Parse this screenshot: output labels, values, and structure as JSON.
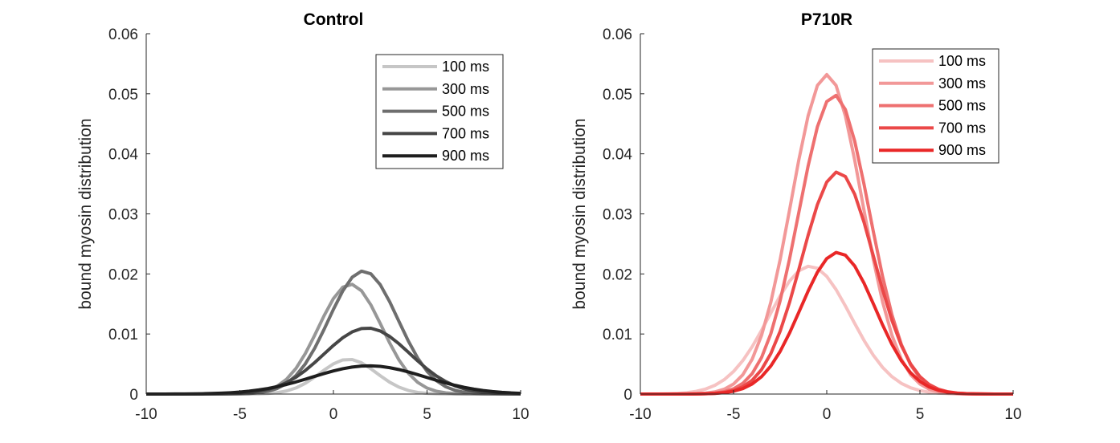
{
  "chart_data": [
    {
      "type": "line",
      "title": "Control",
      "xlabel": "",
      "ylabel": "bound myosin distribution",
      "xlim": [
        -10,
        10
      ],
      "ylim": [
        0,
        0.06
      ],
      "xticks": [
        "-10",
        "-5",
        "0",
        "5",
        "10"
      ],
      "yticks": [
        "0",
        "0.01",
        "0.02",
        "0.03",
        "0.04",
        "0.05",
        "0.06"
      ],
      "grid": false,
      "legend_position": "top-right",
      "series": [
        {
          "name": "100 ms",
          "color": "#c6c6c6",
          "mu": 0.8,
          "sigma": 1.5,
          "peak": 0.0058
        },
        {
          "name": "300 ms",
          "color": "#979797",
          "mu": 0.9,
          "sigma": 1.7,
          "peak": 0.0183
        },
        {
          "name": "500 ms",
          "color": "#6e6e6e",
          "mu": 1.6,
          "sigma": 1.85,
          "peak": 0.0205
        },
        {
          "name": "700 ms",
          "color": "#464646",
          "mu": 1.8,
          "sigma": 2.3,
          "peak": 0.011
        },
        {
          "name": "900 ms",
          "color": "#1e1e1e",
          "mu": 1.9,
          "sigma": 3.0,
          "peak": 0.0047
        }
      ]
    },
    {
      "type": "line",
      "title": "P710R",
      "xlabel": "",
      "ylabel": "bound myosin distribution",
      "xlim": [
        -10,
        10
      ],
      "ylim": [
        0,
        0.06
      ],
      "xticks": [
        "-10",
        "-5",
        "0",
        "5",
        "10"
      ],
      "yticks": [
        "0",
        "0.01",
        "0.02",
        "0.03",
        "0.04",
        "0.05",
        "0.06"
      ],
      "grid": false,
      "legend_position": "top-right",
      "series": [
        {
          "name": "100 ms",
          "color": "#f6c2c2",
          "mu": -0.9,
          "sigma": 2.2,
          "peak": 0.0213
        },
        {
          "name": "300 ms",
          "color": "#f29898",
          "mu": 0.0,
          "sigma": 1.9,
          "peak": 0.0532
        },
        {
          "name": "500 ms",
          "color": "#ee7070",
          "mu": 0.4,
          "sigma": 1.9,
          "peak": 0.0498
        },
        {
          "name": "700 ms",
          "color": "#eb4848",
          "mu": 0.6,
          "sigma": 1.95,
          "peak": 0.037
        },
        {
          "name": "900 ms",
          "color": "#e92727",
          "mu": 0.6,
          "sigma": 2.0,
          "peak": 0.0236
        }
      ]
    }
  ]
}
